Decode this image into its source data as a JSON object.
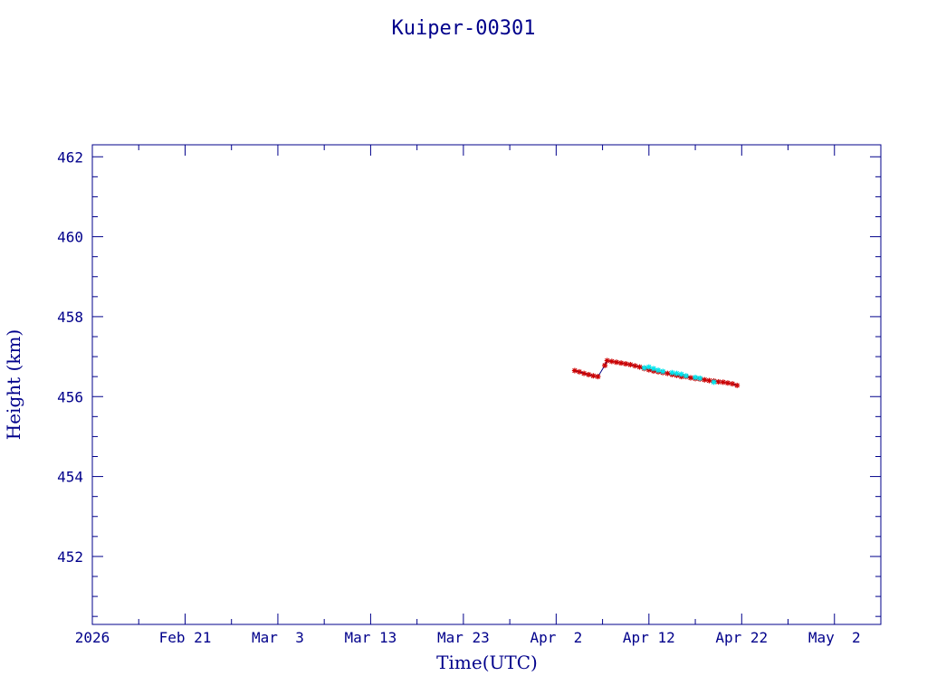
{
  "chart_data": {
    "type": "scatter",
    "title": "Kuiper-00301",
    "xlabel": "Time(UTC)",
    "ylabel": "Height (km)",
    "xlim": [
      "2026-02-11",
      "2026-05-07"
    ],
    "ylim": [
      450.3,
      462.3
    ],
    "x_ticks": [
      {
        "date": "2026-02-11",
        "label": "2026"
      },
      {
        "date": "2026-02-21",
        "label": "Feb 21"
      },
      {
        "date": "2026-03-03",
        "label": "Mar  3"
      },
      {
        "date": "2026-03-13",
        "label": "Mar 13"
      },
      {
        "date": "2026-03-23",
        "label": "Mar 23"
      },
      {
        "date": "2026-04-02",
        "label": "Apr  2"
      },
      {
        "date": "2026-04-12",
        "label": "Apr 12"
      },
      {
        "date": "2026-04-22",
        "label": "Apr 22"
      },
      {
        "date": "2026-05-02",
        "label": "May  2"
      }
    ],
    "y_ticks": [
      452,
      454,
      456,
      458,
      460,
      462
    ],
    "grid": false,
    "colors": {
      "axes": "#00008b",
      "series_primary": "#cc0000",
      "series_secondary": "#00e5ee",
      "line": "#000080"
    },
    "series": [
      {
        "marker": "asterisk",
        "color": "#cc0000",
        "connect": true,
        "points": [
          [
            "2026-04-04",
            456.65
          ],
          [
            "2026-04-04T12:00",
            456.62
          ],
          [
            "2026-04-05",
            456.58
          ],
          [
            "2026-04-05T12:00",
            456.55
          ],
          [
            "2026-04-06",
            456.52
          ],
          [
            "2026-04-06T12:00",
            456.5
          ],
          [
            "2026-04-07T06:00",
            456.78
          ],
          [
            "2026-04-07T12:00",
            456.9
          ],
          [
            "2026-04-08",
            456.88
          ],
          [
            "2026-04-08T12:00",
            456.86
          ],
          [
            "2026-04-09",
            456.84
          ],
          [
            "2026-04-09T12:00",
            456.82
          ],
          [
            "2026-04-10",
            456.8
          ],
          [
            "2026-04-10T12:00",
            456.77
          ],
          [
            "2026-04-11",
            456.74
          ],
          [
            "2026-04-11T12:00",
            456.7
          ],
          [
            "2026-04-12",
            456.67
          ],
          [
            "2026-04-12T12:00",
            456.64
          ],
          [
            "2026-04-13",
            456.62
          ],
          [
            "2026-04-13T12:00",
            456.6
          ],
          [
            "2026-04-14",
            456.58
          ],
          [
            "2026-04-14T12:00",
            456.55
          ],
          [
            "2026-04-15",
            456.53
          ],
          [
            "2026-04-15T12:00",
            456.5
          ],
          [
            "2026-04-16",
            456.5
          ],
          [
            "2026-04-16T12:00",
            456.47
          ],
          [
            "2026-04-17",
            456.45
          ],
          [
            "2026-04-17T12:00",
            456.44
          ],
          [
            "2026-04-18",
            456.42
          ],
          [
            "2026-04-18T12:00",
            456.4
          ],
          [
            "2026-04-19",
            456.39
          ],
          [
            "2026-04-19T12:00",
            456.37
          ],
          [
            "2026-04-20",
            456.36
          ],
          [
            "2026-04-20T12:00",
            456.34
          ],
          [
            "2026-04-21",
            456.32
          ],
          [
            "2026-04-21T12:00",
            456.28
          ]
        ]
      },
      {
        "marker": "asterisk",
        "color": "#00e5ee",
        "connect": false,
        "points": [
          [
            "2026-04-11T12:00",
            456.72
          ],
          [
            "2026-04-12",
            456.74
          ],
          [
            "2026-04-12T12:00",
            456.7
          ],
          [
            "2026-04-13",
            456.66
          ],
          [
            "2026-04-13T12:00",
            456.63
          ],
          [
            "2026-04-14T12:00",
            456.6
          ],
          [
            "2026-04-15",
            456.58
          ],
          [
            "2026-04-15T12:00",
            456.56
          ],
          [
            "2026-04-16",
            456.52
          ],
          [
            "2026-04-17",
            456.48
          ],
          [
            "2026-04-17T12:00",
            456.46
          ],
          [
            "2026-04-19",
            456.36
          ]
        ]
      }
    ]
  }
}
